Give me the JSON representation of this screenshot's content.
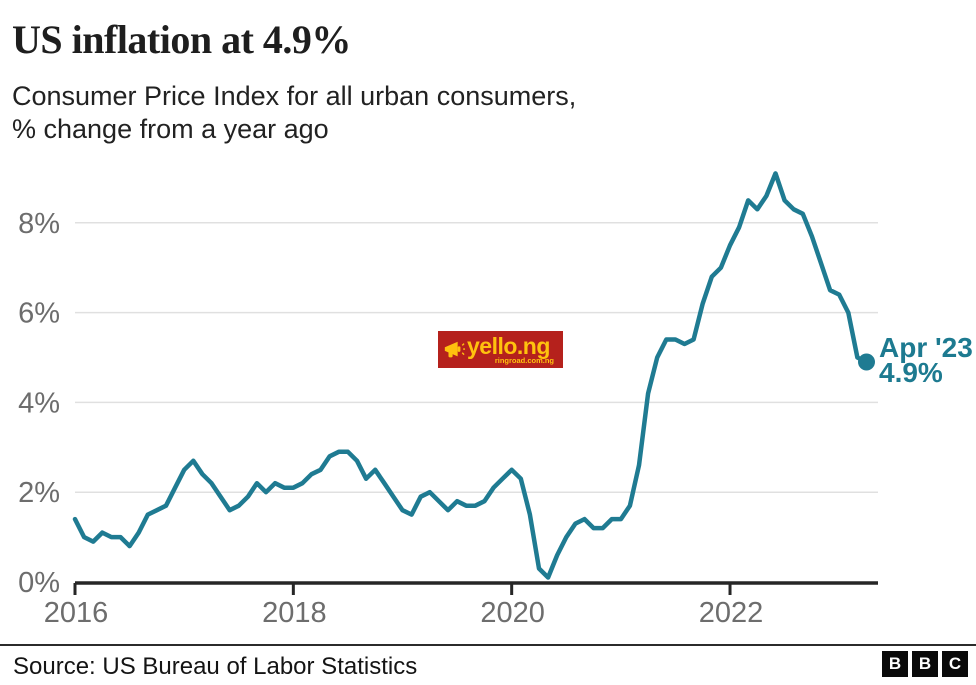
{
  "header": {
    "title": "US inflation at 4.9%",
    "subtitle_line1": "Consumer Price Index for all urban consumers,",
    "subtitle_line2": "% change from a year ago"
  },
  "chart_data": {
    "type": "line",
    "title": "US inflation at 4.9%",
    "subtitle": "Consumer Price Index for all urban consumers, % change from a year ago",
    "x_start": "2016-01",
    "x_end": "2023-04",
    "x_tick_years": [
      2016,
      2018,
      2020,
      2022
    ],
    "x_tick_labels": [
      "2016",
      "2018",
      "2020",
      "2022"
    ],
    "y_ticks": [
      {
        "label": "0%",
        "value": 0
      },
      {
        "label": "2%",
        "value": 2
      },
      {
        "label": "4%",
        "value": 4
      },
      {
        "label": "6%",
        "value": 6
      },
      {
        "label": "8%",
        "value": 8
      }
    ],
    "ylim": [
      0,
      9.3
    ],
    "grid": "horizontal",
    "legend": "none",
    "line_color": "#1f7b92",
    "axis_color": "#262626",
    "grid_color": "#e0e0e0",
    "tick_label_color": "#6d6d6d",
    "series": [
      {
        "name": "US CPI, % change from a year ago",
        "values": [
          1.4,
          1.0,
          0.9,
          1.1,
          1.0,
          1.0,
          0.8,
          1.1,
          1.5,
          1.6,
          1.7,
          2.1,
          2.5,
          2.7,
          2.4,
          2.2,
          1.9,
          1.6,
          1.7,
          1.9,
          2.2,
          2.0,
          2.2,
          2.1,
          2.1,
          2.2,
          2.4,
          2.5,
          2.8,
          2.9,
          2.9,
          2.7,
          2.3,
          2.5,
          2.2,
          1.9,
          1.6,
          1.5,
          1.9,
          2.0,
          1.8,
          1.6,
          1.8,
          1.7,
          1.7,
          1.8,
          2.1,
          2.3,
          2.5,
          2.3,
          1.5,
          0.3,
          0.1,
          0.6,
          1.0,
          1.3,
          1.4,
          1.2,
          1.2,
          1.4,
          1.4,
          1.7,
          2.6,
          4.2,
          5.0,
          5.4,
          5.4,
          5.3,
          5.4,
          6.2,
          6.8,
          7.0,
          7.5,
          7.9,
          8.5,
          8.3,
          8.6,
          9.1,
          8.5,
          8.3,
          8.2,
          7.7,
          7.1,
          6.5,
          6.4,
          6.0,
          5.0,
          4.9
        ]
      }
    ],
    "annotation": {
      "line1": "Apr '23",
      "line2": "4.9%",
      "color": "#1d7a90"
    },
    "last_point": {
      "month": "Apr 2023",
      "value": 4.9
    }
  },
  "watermark": {
    "text": "yello.ng",
    "subtext": "ringroad.com.ng",
    "bg_color": "#b5211c",
    "fg_color": "#ffc20e"
  },
  "footer": {
    "source": "Source: US Bureau of Labor Statistics",
    "bbc_letters": [
      "B",
      "B",
      "C"
    ]
  }
}
